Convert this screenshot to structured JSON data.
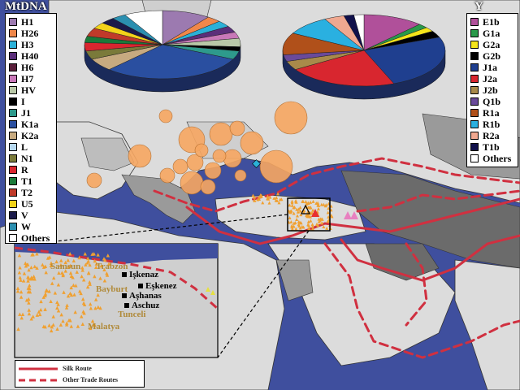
{
  "mtdna_legend": {
    "title": "MtDNA",
    "items": [
      {
        "label": "H1",
        "color": "#9c7ab0"
      },
      {
        "label": "H26",
        "color": "#f0874a"
      },
      {
        "label": "H3",
        "color": "#2bb1d8"
      },
      {
        "label": "H40",
        "color": "#5b2e7a"
      },
      {
        "label": "H6",
        "color": "#5a1f3a"
      },
      {
        "label": "H7",
        "color": "#c878b8"
      },
      {
        "label": "HV",
        "color": "#b9c8a8"
      },
      {
        "label": "I",
        "color": "#000000"
      },
      {
        "label": "J1",
        "color": "#2e9a8c"
      },
      {
        "label": "K1a",
        "color": "#2a4fa0"
      },
      {
        "label": "K2a",
        "color": "#c7aa80"
      },
      {
        "label": "L",
        "color": "#b7d9f0"
      },
      {
        "label": "N1",
        "color": "#7a7a3a"
      },
      {
        "label": "R",
        "color": "#d8262f"
      },
      {
        "label": "T1",
        "color": "#1a7a3a"
      },
      {
        "label": "T2",
        "color": "#c03a2a"
      },
      {
        "label": "U5",
        "color": "#f2d21a"
      },
      {
        "label": "V",
        "color": "#1a1a4a"
      },
      {
        "label": "W",
        "color": "#2b8fb0"
      },
      {
        "label": "Others",
        "color": "#ffffff"
      }
    ]
  },
  "y_legend": {
    "title": "Y",
    "items": [
      {
        "label": "E1b",
        "color": "#b0509a"
      },
      {
        "label": "G1a",
        "color": "#2a9a4a"
      },
      {
        "label": "G2a",
        "color": "#f5e51a"
      },
      {
        "label": "G2b",
        "color": "#000000"
      },
      {
        "label": "J1a",
        "color": "#1f3f8f"
      },
      {
        "label": "J2a",
        "color": "#d8262f"
      },
      {
        "label": "J2b",
        "color": "#a88a4a"
      },
      {
        "label": "Q1b",
        "color": "#6a4a9a"
      },
      {
        "label": "R1a",
        "color": "#b0501a"
      },
      {
        "label": "R1b",
        "color": "#2ab0e0"
      },
      {
        "label": "R2a",
        "color": "#f0a890"
      },
      {
        "label": "T1b",
        "color": "#10104a"
      },
      {
        "label": "Others",
        "color": "#ffffff"
      }
    ]
  },
  "pie_mtdna": {
    "slices": [
      {
        "label": "H1",
        "share": 10,
        "color": "#9c7ab0"
      },
      {
        "label": "H26",
        "share": 3,
        "color": "#f0874a"
      },
      {
        "label": "H3",
        "share": 3,
        "color": "#2bb1d8"
      },
      {
        "label": "H40",
        "share": 3,
        "color": "#5b2e7a"
      },
      {
        "label": "H7",
        "share": 3,
        "color": "#c878b8"
      },
      {
        "label": "HV",
        "share": 4,
        "color": "#b9c8a8"
      },
      {
        "label": "I",
        "share": 2,
        "color": "#000000"
      },
      {
        "label": "J1",
        "share": 4,
        "color": "#2e9a8c"
      },
      {
        "label": "K1a",
        "share": 30,
        "color": "#2a4fa0"
      },
      {
        "label": "K2a",
        "share": 6,
        "color": "#c7aa80"
      },
      {
        "label": "N1",
        "share": 4,
        "color": "#7a7a3a"
      },
      {
        "label": "R",
        "share": 4,
        "color": "#d8262f"
      },
      {
        "label": "T1",
        "share": 3,
        "color": "#1a7a3a"
      },
      {
        "label": "T2",
        "share": 4,
        "color": "#c03a2a"
      },
      {
        "label": "U5",
        "share": 3,
        "color": "#f2d21a"
      },
      {
        "label": "V",
        "share": 3,
        "color": "#1a1a4a"
      },
      {
        "label": "W",
        "share": 3,
        "color": "#2b8fb0"
      },
      {
        "label": "Others",
        "share": 8,
        "color": "#ffffff"
      }
    ]
  },
  "pie_y": {
    "slices": [
      {
        "label": "E1b",
        "share": 12,
        "color": "#b0509a"
      },
      {
        "label": "G1a",
        "share": 2,
        "color": "#2a9a4a"
      },
      {
        "label": "G2a",
        "share": 2,
        "color": "#f5e51a"
      },
      {
        "label": "G2b",
        "share": 3,
        "color": "#000000"
      },
      {
        "label": "J1a",
        "share": 25,
        "color": "#1f3f8f"
      },
      {
        "label": "J2a",
        "share": 22,
        "color": "#d8262f"
      },
      {
        "label": "J2b",
        "share": 4,
        "color": "#a88a4a"
      },
      {
        "label": "Q1b",
        "share": 3,
        "color": "#6a4a9a"
      },
      {
        "label": "R1a",
        "share": 10,
        "color": "#b0501a"
      },
      {
        "label": "R1b",
        "share": 9,
        "color": "#2ab0e0"
      },
      {
        "label": "R2a",
        "share": 4,
        "color": "#f0a890"
      },
      {
        "label": "T1b",
        "share": 2,
        "color": "#10104a"
      },
      {
        "label": "Others",
        "share": 2,
        "color": "#ffffff"
      }
    ]
  },
  "inset_places": [
    {
      "label": "Samsun",
      "style": "gold"
    },
    {
      "label": "Trabzon",
      "style": "gold"
    },
    {
      "label": "Işkenaz",
      "style": "dark"
    },
    {
      "label": "Eşkenez",
      "style": "dark"
    },
    {
      "label": "Bayburt",
      "style": "gold"
    },
    {
      "label": "Aşhanas",
      "style": "dark"
    },
    {
      "label": "Aschuz",
      "style": "dark"
    },
    {
      "label": "Tunceli",
      "style": "gold"
    },
    {
      "label": "Malatya",
      "style": "gold"
    }
  ],
  "route_legend": {
    "silk_route": "Silk Route",
    "other_routes": "Other Trade Routes",
    "route_color": "#d03040"
  },
  "colors": {
    "sea": "#3f4f9e",
    "land": "#dcdcdc",
    "land_dark": "#6b6b6b",
    "land_mid": "#9a9a9a",
    "circle_fill": "#f7a762",
    "route": "#d03040",
    "triangle": "#f0a030"
  }
}
